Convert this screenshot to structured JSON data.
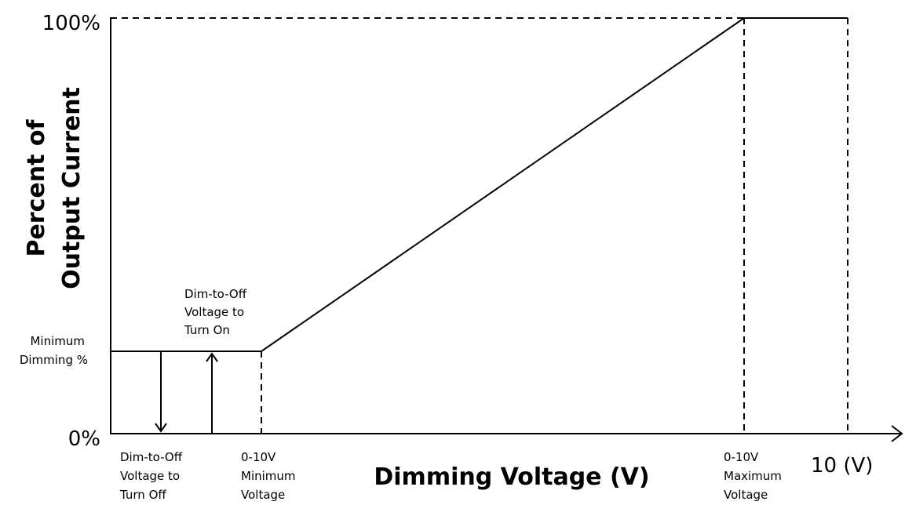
{
  "y_axis": {
    "title": [
      "Percent of",
      "Output Current"
    ],
    "top_label": "100%",
    "bottom_label": "0%",
    "minimum_label": [
      "Minimum",
      "Dimming %"
    ]
  },
  "x_axis": {
    "title": "Dimming Voltage (V)",
    "end_label": "10 (V)"
  },
  "annotations": {
    "turn_on": [
      "Dim-to-Off",
      "Voltage to",
      "Turn On"
    ],
    "turn_off": [
      "Dim-to-Off",
      "Voltage to",
      "Turn Off"
    ],
    "min_voltage": [
      "0-10V",
      "Minimum",
      "Voltage"
    ],
    "max_voltage": [
      "0-10V",
      "Maximum",
      "Voltage"
    ]
  }
}
